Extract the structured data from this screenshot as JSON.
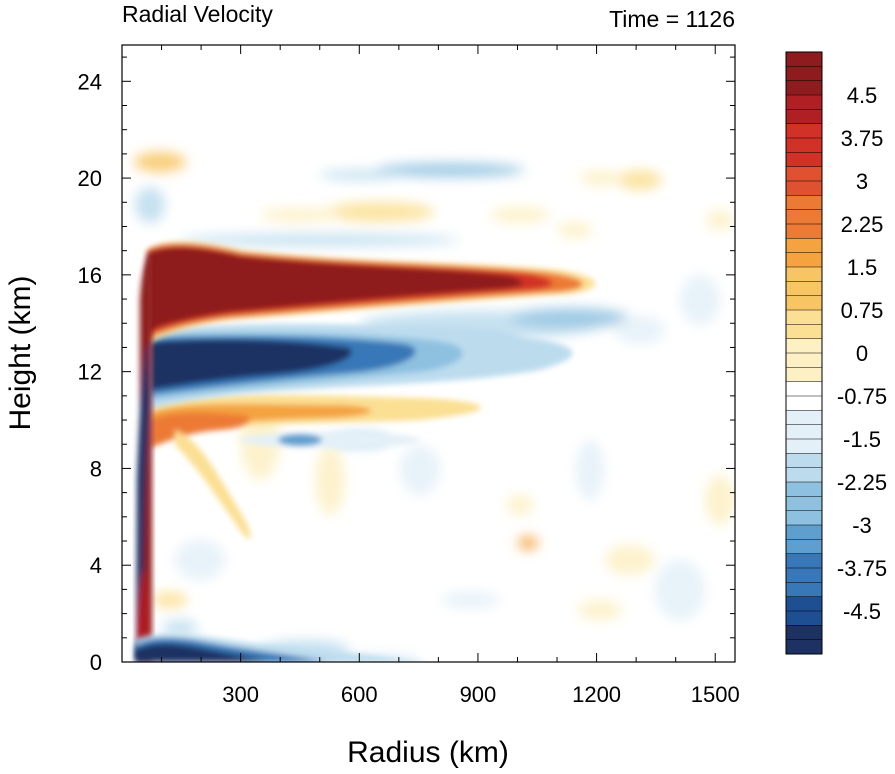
{
  "chart_data": {
    "type": "heatmap",
    "title_left": "Radial Velocity",
    "title_right": "Time = 1126",
    "xlabel": "Radius (km)",
    "ylabel": "Height (km)",
    "xlim": [
      0,
      1550
    ],
    "ylim": [
      0,
      25.5
    ],
    "xticks": [
      300,
      600,
      900,
      1200,
      1500
    ],
    "yticks": [
      0,
      4,
      8,
      12,
      16,
      20,
      24
    ],
    "colorbar": {
      "min": -5.25,
      "max": 5.25,
      "step": 0.25,
      "labels": [
        "4.5",
        "3.75",
        "3",
        "2.25",
        "1.5",
        "0.75",
        "0",
        "-0.75",
        "-1.5",
        "-2.25",
        "-3",
        "-3.75",
        "-4.5"
      ],
      "label_values": [
        4.5,
        3.75,
        3,
        2.25,
        1.5,
        0.75,
        0,
        -0.75,
        -1.5,
        -2.25,
        -3,
        -3.75,
        -4.5
      ],
      "colors_high_to_low": [
        "#8e1c1e",
        "#b01f24",
        "#d23128",
        "#e0522f",
        "#ec7a34",
        "#f4a33f",
        "#f8c564",
        "#fbdf93",
        "#fdf0c4",
        "#ffffff",
        "#e3f0f8",
        "#bcdcee",
        "#8ec1e0",
        "#5f9fcf",
        "#3878b8",
        "#1f4f93",
        "#1d3263"
      ]
    },
    "features": [
      {
        "name": "upper outflow",
        "sign": "positive",
        "radius_km": [
          60,
          1150
        ],
        "height_km": [
          13.5,
          17.2
        ],
        "peak": 5.25
      },
      {
        "name": "upper inflow below outflow",
        "sign": "negative",
        "radius_km": [
          60,
          800
        ],
        "height_km": [
          11.0,
          13.6
        ],
        "peak": -5.25
      },
      {
        "name": "mid-level outflow",
        "sign": "positive",
        "radius_km": [
          60,
          700
        ],
        "height_km": [
          8.5,
          10.5
        ],
        "peak": 3.0
      },
      {
        "name": "boundary-layer inflow",
        "sign": "negative",
        "radius_km": [
          40,
          500
        ],
        "height_km": [
          0,
          1.2
        ],
        "peak": -5.25
      },
      {
        "name": "near-core low-level outflow",
        "sign": "positive",
        "radius_km": [
          40,
          80
        ],
        "height_km": [
          0.5,
          3.8
        ],
        "peak": 5.25
      },
      {
        "name": "eyewall inflow column",
        "sign": "negative",
        "radius_km": [
          40,
          70
        ],
        "height_km": [
          1,
          13
        ],
        "peak": -5.25
      },
      {
        "name": "tropopause inflow",
        "sign": "negative",
        "radius_km": [
          300,
          950
        ],
        "height_km": [
          19.8,
          20.6
        ],
        "peak": -2.0
      },
      {
        "name": "lower stratosphere outflow",
        "sign": "positive",
        "radius_km": [
          400,
          1000
        ],
        "height_km": [
          17.5,
          19.3
        ],
        "peak": 1.5
      }
    ]
  }
}
